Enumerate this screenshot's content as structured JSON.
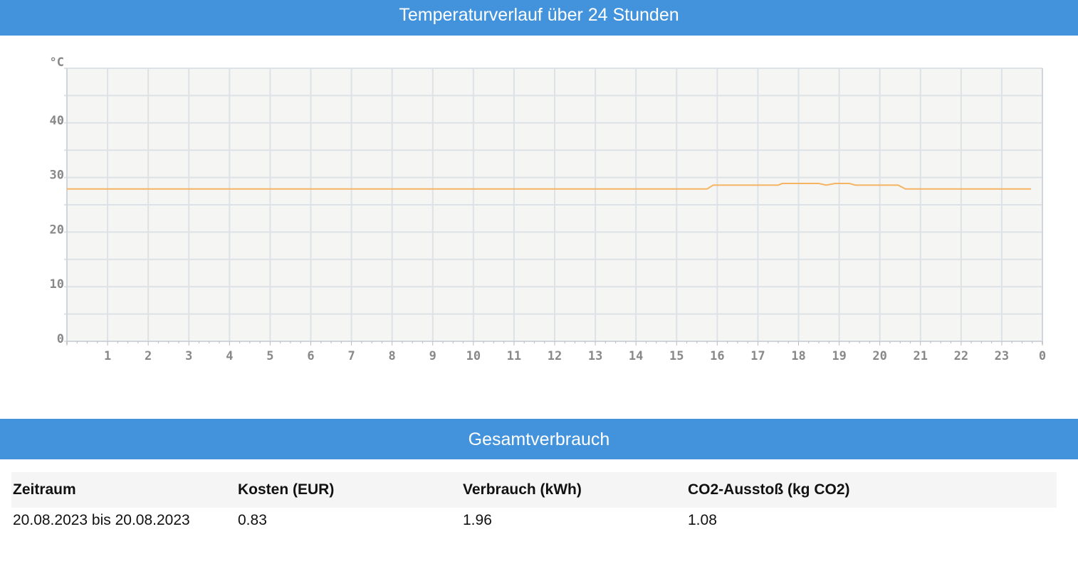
{
  "header": {
    "title": "Temperaturverlauf über 24 Stunden"
  },
  "chart_data": {
    "type": "line",
    "title": "Temperaturverlauf über 24 Stunden",
    "ylabel": "°C",
    "xlabel": "",
    "ylim": [
      0,
      50
    ],
    "xlim": [
      0,
      24
    ],
    "yticks": [
      0,
      10,
      20,
      30,
      40
    ],
    "xtick_labels": [
      "1",
      "2",
      "3",
      "4",
      "5",
      "6",
      "7",
      "8",
      "9",
      "10",
      "11",
      "12",
      "13",
      "14",
      "15",
      "16",
      "17",
      "18",
      "19",
      "20",
      "21",
      "22",
      "23",
      "0"
    ],
    "grid": true,
    "color": "#f5b461",
    "x": [
      0,
      15.75,
      15.9,
      17.5,
      17.6,
      18.5,
      18.68,
      18.9,
      19.25,
      19.4,
      20.45,
      20.63,
      23.72
    ],
    "y": [
      27.9,
      27.9,
      28.6,
      28.6,
      28.9,
      28.9,
      28.6,
      28.9,
      28.9,
      28.6,
      28.6,
      27.9,
      27.9
    ]
  },
  "summary": {
    "title": "Gesamtverbrauch",
    "headers": [
      "Zeitraum",
      "Kosten (EUR)",
      "Verbrauch (kWh)",
      "CO2-Ausstoß (kg CO2)"
    ],
    "row": [
      "20.08.2023 bis 20.08.2023",
      "0.83",
      "1.96",
      "1.08"
    ]
  }
}
